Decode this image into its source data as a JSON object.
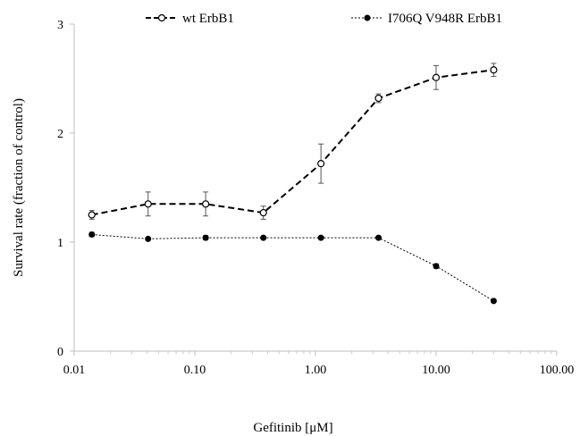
{
  "chart_data": {
    "type": "line",
    "title": "",
    "xlabel": "Gefitinib [μM]",
    "ylabel": "Survival rate (fraction of control)",
    "x_scale": "log",
    "xlim": [
      0.01,
      100
    ],
    "ylim": [
      0,
      3
    ],
    "x_ticks": [
      "0.01",
      "0.10",
      "1.00",
      "10.00",
      "100.00"
    ],
    "y_ticks": [
      "0",
      "1",
      "2",
      "3"
    ],
    "legend_position": "top",
    "grid": false,
    "x": [
      0.014,
      0.041,
      0.123,
      0.37,
      1.11,
      3.33,
      10,
      30
    ],
    "series": [
      {
        "name": "wt ErbB1",
        "style": "dashed",
        "marker": "open-circle",
        "color": "#000000",
        "values": [
          1.25,
          1.35,
          1.35,
          1.27,
          1.72,
          2.32,
          2.51,
          2.58
        ],
        "errors": [
          0.04,
          0.11,
          0.11,
          0.06,
          0.18,
          0.04,
          0.11,
          0.06
        ]
      },
      {
        "name": "I706Q V948R ErbB1",
        "style": "dotted",
        "marker": "filled-circle",
        "color": "#000000",
        "values": [
          1.07,
          1.03,
          1.04,
          1.04,
          1.04,
          1.04,
          0.78,
          0.46
        ],
        "errors": [
          0.02,
          0.01,
          0.02,
          0.01,
          0.01,
          0.01,
          0.02,
          0.01
        ]
      }
    ]
  }
}
